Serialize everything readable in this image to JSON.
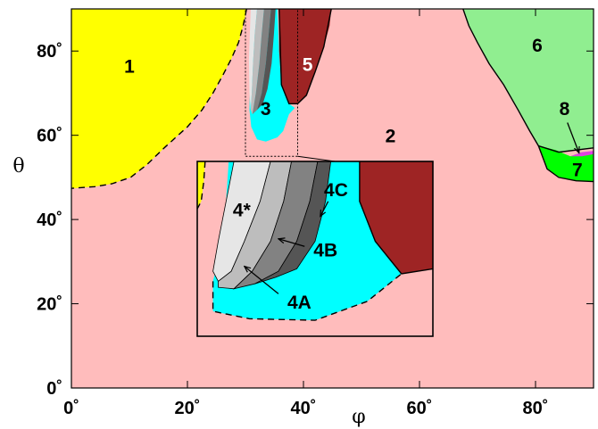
{
  "chart_data": {
    "type": "area",
    "title": "",
    "xlabel": "φ",
    "ylabel": "θ",
    "xlim": [
      0,
      90
    ],
    "ylim": [
      0,
      90
    ],
    "x_ticks": [
      {
        "value": 0,
        "label": "0˚"
      },
      {
        "value": 20,
        "label": "20˚"
      },
      {
        "value": 40,
        "label": "40˚"
      },
      {
        "value": 60,
        "label": "60˚"
      },
      {
        "value": 80,
        "label": "80˚"
      }
    ],
    "y_ticks": [
      {
        "value": 0,
        "label": "0˚"
      },
      {
        "value": 20,
        "label": "20˚"
      },
      {
        "value": 40,
        "label": "40˚"
      },
      {
        "value": 60,
        "label": "60˚"
      },
      {
        "value": 80,
        "label": "80˚"
      }
    ],
    "colors": {
      "region_1": "#ffff00",
      "region_2": "#ffbcbc",
      "region_3": "#00ffff",
      "region_5": "#9e2424",
      "region_6": "#90ee90",
      "region_7": "#00ff00",
      "region_8": "#e040e0",
      "region_4star": "#e6e6e6",
      "region_4A": "#bdbdbd",
      "region_4B": "#828282",
      "region_4C": "#555555"
    },
    "regions": [
      {
        "id": "1",
        "label": "1",
        "color": "#ffff00",
        "label_at": [
          10,
          76
        ],
        "boundary": [
          [
            0,
            90
          ],
          [
            30.2,
            90
          ],
          [
            29.6,
            86
          ],
          [
            28.8,
            82
          ],
          [
            27.5,
            78
          ],
          [
            26,
            74
          ],
          [
            24.4,
            70
          ],
          [
            22.5,
            66
          ],
          [
            20,
            62
          ],
          [
            16,
            57
          ],
          [
            13,
            53
          ],
          [
            10.2,
            50
          ],
          [
            7,
            48.5
          ],
          [
            4,
            47.8
          ],
          [
            0,
            47.4
          ]
        ]
      },
      {
        "id": "6",
        "label": "6",
        "color": "#90ee90",
        "label_at": [
          80.3,
          81
        ],
        "boundary": [
          [
            67.5,
            90
          ],
          [
            68.5,
            86
          ],
          [
            70,
            82
          ],
          [
            72,
            77
          ],
          [
            74.5,
            72
          ],
          [
            77,
            66
          ],
          [
            79,
            61
          ],
          [
            80.5,
            57.5
          ],
          [
            84,
            56
          ],
          [
            87,
            56.5
          ],
          [
            90,
            57
          ],
          [
            90,
            90
          ]
        ]
      },
      {
        "id": "7",
        "label": "7",
        "color": "#00ff00",
        "label_at": [
          87.2,
          51.5
        ],
        "boundary": [
          [
            80.5,
            57.5
          ],
          [
            83.5,
            56.5
          ],
          [
            86,
            55
          ],
          [
            88,
            56
          ],
          [
            90,
            56
          ],
          [
            90,
            49
          ],
          [
            87,
            49.2
          ],
          [
            84,
            50
          ],
          [
            82,
            52
          ],
          [
            80.5,
            57.5
          ]
        ]
      },
      {
        "id": "8",
        "label": "8",
        "color": "#e040e0",
        "label_at": [
          85,
          66
        ],
        "boundary": [
          [
            86,
            55
          ],
          [
            88,
            56
          ],
          [
            90,
            56.3
          ],
          [
            90,
            55.5
          ],
          [
            88,
            55
          ],
          [
            86,
            55
          ]
        ]
      },
      {
        "id": "3",
        "label": "3",
        "color": "#00ffff",
        "label_at": [
          33.5,
          66
        ],
        "boundary": [
          [
            31.3,
            90
          ],
          [
            35.5,
            90
          ],
          [
            35.8,
            80
          ],
          [
            36.2,
            72
          ],
          [
            37.5,
            67.5
          ],
          [
            38.5,
            66.5
          ],
          [
            37.5,
            65
          ],
          [
            36.5,
            61
          ],
          [
            35.5,
            59.5
          ],
          [
            33.5,
            58.5
          ],
          [
            32,
            59
          ],
          [
            31,
            62
          ],
          [
            30.7,
            66
          ],
          [
            30.8,
            72
          ],
          [
            31,
            80
          ]
        ]
      },
      {
        "id": "5",
        "label": "5",
        "color": "#9e2424",
        "label_color": "#ffffff",
        "label_at": [
          40.7,
          76.5
        ],
        "boundary": [
          [
            35.8,
            90
          ],
          [
            44.8,
            90
          ],
          [
            44.5,
            86
          ],
          [
            43.5,
            81
          ],
          [
            42,
            75
          ],
          [
            40.5,
            69.5
          ],
          [
            39,
            67.5
          ],
          [
            37.5,
            67.5
          ],
          [
            36.2,
            72
          ],
          [
            35.8,
            80
          ]
        ]
      },
      {
        "id": "4*",
        "label": "",
        "color": "#e6e6e6",
        "boundary": [
          [
            30.9,
            90
          ],
          [
            32,
            90
          ],
          [
            31.6,
            84
          ],
          [
            31.3,
            77
          ],
          [
            31.1,
            70
          ],
          [
            30.9,
            66
          ],
          [
            30.7,
            70
          ],
          [
            30.6,
            78
          ]
        ]
      },
      {
        "id": "4A",
        "label": "",
        "color": "#bdbdbd",
        "boundary": [
          [
            32,
            90
          ],
          [
            33.2,
            90
          ],
          [
            32.8,
            84
          ],
          [
            32.4,
            77
          ],
          [
            31.8,
            70
          ],
          [
            31.2,
            65
          ],
          [
            30.9,
            66
          ],
          [
            31.1,
            70
          ],
          [
            31.3,
            77
          ],
          [
            31.6,
            84
          ]
        ]
      },
      {
        "id": "4B",
        "label": "",
        "color": "#828282",
        "boundary": [
          [
            33.2,
            90
          ],
          [
            34.4,
            90
          ],
          [
            34,
            84
          ],
          [
            33.5,
            77
          ],
          [
            32.8,
            70
          ],
          [
            32,
            66
          ],
          [
            31.2,
            65
          ],
          [
            31.8,
            70
          ],
          [
            32.4,
            77
          ],
          [
            32.8,
            84
          ]
        ]
      },
      {
        "id": "4C",
        "label": "",
        "color": "#555555",
        "boundary": [
          [
            34.4,
            90
          ],
          [
            35.2,
            90
          ],
          [
            34.9,
            84
          ],
          [
            34.5,
            77
          ],
          [
            33.8,
            71
          ],
          [
            33,
            67.5
          ],
          [
            32,
            66
          ],
          [
            32.8,
            70
          ],
          [
            33.5,
            77
          ],
          [
            34,
            84
          ]
        ]
      }
    ],
    "extra_labels": [
      {
        "text": "2",
        "at": [
          55,
          59.5
        ]
      }
    ],
    "solid_boundaries": [
      [
        [
          67.5,
          90
        ],
        [
          68.5,
          86
        ],
        [
          70,
          82
        ],
        [
          72,
          77
        ],
        [
          74.5,
          72
        ],
        [
          77,
          66
        ],
        [
          79,
          61
        ],
        [
          80.5,
          57.5
        ],
        [
          84,
          56
        ],
        [
          90,
          57
        ]
      ],
      [
        [
          80.5,
          57.5
        ],
        [
          82,
          52
        ],
        [
          84,
          50
        ],
        [
          87,
          49.2
        ],
        [
          90,
          49
        ]
      ],
      [
        [
          35.8,
          90
        ],
        [
          36.2,
          72
        ],
        [
          37.5,
          67.5
        ],
        [
          39,
          67.5
        ],
        [
          40.5,
          69.5
        ],
        [
          42,
          75
        ],
        [
          43.5,
          81
        ],
        [
          44.8,
          90
        ]
      ]
    ],
    "dashed_boundaries": [
      [
        [
          30.2,
          90
        ],
        [
          29.6,
          86
        ],
        [
          28.8,
          82
        ],
        [
          27.5,
          78
        ],
        [
          26,
          74
        ],
        [
          24.4,
          70
        ],
        [
          22.5,
          66
        ],
        [
          20,
          62
        ],
        [
          16,
          57
        ],
        [
          13,
          53
        ],
        [
          10.2,
          50
        ],
        [
          7,
          48.5
        ],
        [
          4,
          47.8
        ],
        [
          0,
          47.4
        ]
      ]
    ],
    "zoom_box": [
      30,
      39,
      55,
      90
    ],
    "inset": {
      "xlim": [
        30,
        39
      ],
      "ylim": [
        55,
        90
      ],
      "frame_color": "#000000",
      "regions": [
        {
          "id": "3",
          "color": "#00ffff",
          "boundary": [
            [
              31.2,
              90
            ],
            [
              36.2,
              90
            ],
            [
              36.2,
              82
            ],
            [
              36.8,
              74
            ],
            [
              37.8,
              67.5
            ],
            [
              36.5,
              62
            ],
            [
              34.5,
              58.2
            ],
            [
              32,
              58.5
            ],
            [
              30.6,
              60
            ],
            [
              30.6,
              66
            ],
            [
              31,
              74
            ]
          ]
        },
        {
          "id": "5",
          "color": "#9e2424",
          "boundary": [
            [
              36.2,
              90
            ],
            [
              39,
              90
            ],
            [
              39,
              68.5
            ],
            [
              37.8,
              67.5
            ],
            [
              36.8,
              74
            ],
            [
              36.2,
              82
            ]
          ]
        },
        {
          "id": "4*",
          "color": "#e6e6e6",
          "boundary": [
            [
              31.4,
              90
            ],
            [
              32.8,
              90
            ],
            [
              32.4,
              82
            ],
            [
              31.8,
              74
            ],
            [
              31.3,
              68
            ],
            [
              30.8,
              66
            ],
            [
              30.6,
              68
            ],
            [
              30.8,
              74
            ],
            [
              31.1,
              82
            ]
          ]
        },
        {
          "id": "4A",
          "color": "#bdbdbd",
          "boundary": [
            [
              32.8,
              90
            ],
            [
              33.6,
              90
            ],
            [
              33.3,
              82
            ],
            [
              32.8,
              74
            ],
            [
              32.1,
              68
            ],
            [
              31.4,
              64.5
            ],
            [
              30.8,
              64.8
            ],
            [
              30.8,
              66
            ],
            [
              31.3,
              68
            ],
            [
              31.8,
              74
            ],
            [
              32.4,
              82
            ]
          ]
        },
        {
          "id": "4B",
          "color": "#828282",
          "boundary": [
            [
              33.6,
              90
            ],
            [
              34.6,
              90
            ],
            [
              34.3,
              82
            ],
            [
              33.8,
              74
            ],
            [
              33.1,
              68
            ],
            [
              32.2,
              65.5
            ],
            [
              31.4,
              64.5
            ],
            [
              32.1,
              68
            ],
            [
              32.8,
              74
            ],
            [
              33.3,
              82
            ]
          ]
        },
        {
          "id": "4C",
          "color": "#555555",
          "boundary": [
            [
              34.6,
              90
            ],
            [
              35.1,
              90
            ],
            [
              34.9,
              82
            ],
            [
              34.5,
              74
            ],
            [
              33.8,
              68.5
            ],
            [
              33,
              66.8
            ],
            [
              32.2,
              65.5
            ],
            [
              33.1,
              68
            ],
            [
              33.8,
              74
            ],
            [
              34.3,
              82
            ]
          ]
        },
        {
          "id": "1",
          "color": "#ffff00",
          "boundary": [
            [
              30,
              90
            ],
            [
              30.3,
              90
            ],
            [
              30.25,
              86
            ],
            [
              30.15,
              82
            ],
            [
              30,
              80.5
            ]
          ]
        }
      ],
      "solid_boundaries": [
        [
          [
            36.2,
            90
          ],
          [
            36.2,
            82
          ],
          [
            36.8,
            74
          ],
          [
            37.8,
            67.5
          ],
          [
            39,
            68.5
          ]
        ]
      ],
      "dashed_boundaries": [
        [
          [
            30.6,
            66
          ],
          [
            30.6,
            60
          ],
          [
            32,
            58.5
          ],
          [
            34.5,
            58.2
          ],
          [
            36.5,
            62
          ],
          [
            37.8,
            67.5
          ]
        ],
        [
          [
            30.3,
            90
          ],
          [
            30.25,
            86
          ],
          [
            30.15,
            82
          ],
          [
            30,
            80.5
          ]
        ]
      ],
      "labels": [
        {
          "text": "4*",
          "at": [
            31.7,
            80
          ]
        },
        {
          "text": "4C",
          "at": [
            35.3,
            84
          ]
        },
        {
          "text": "4B",
          "at": [
            34.9,
            72
          ]
        },
        {
          "text": "4A",
          "at": [
            33.9,
            61.5
          ]
        }
      ],
      "arrows": [
        {
          "from": [
            35,
            82
          ],
          "to": [
            34.7,
            79
          ]
        },
        {
          "from": [
            34.1,
            73
          ],
          "to": [
            33.1,
            74.5
          ]
        },
        {
          "from": [
            33.1,
            63.5
          ],
          "to": [
            31.8,
            69
          ]
        }
      ]
    },
    "arrows": [
      {
        "from": [
          85.5,
          63
        ],
        "to": [
          87.5,
          55.8
        ]
      }
    ]
  }
}
